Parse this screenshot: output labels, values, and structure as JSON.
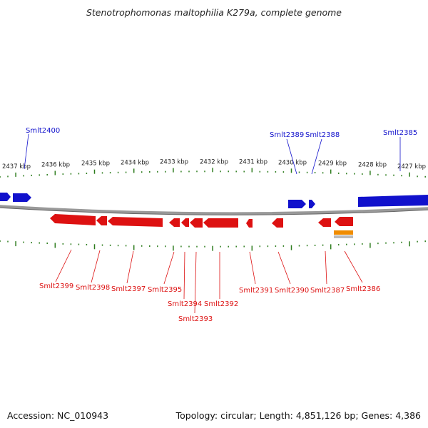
{
  "title": "Stenotrophomonas maltophilia K279a, complete genome",
  "footer": {
    "accession": "Accession: NC_010943",
    "summary": "Topology: circular; Length: 4,851,126 bp; Genes: 4,386"
  },
  "colors": {
    "forward": "#1111cc",
    "reverse": "#dd1111",
    "ticks": "#2e7d1e",
    "backbone": "#888888",
    "other_feature": "#f08c00"
  },
  "axis_labels": [
    "2437 kbp",
    "2436 kbp",
    "2435 kbp",
    "2434 kbp",
    "2433 kbp",
    "2432 kbp",
    "2431 kbp",
    "2430 kbp",
    "2429 kbp",
    "2428 kbp",
    "2427 kbp"
  ],
  "forward_labels": [
    "Smlt2400",
    "Smlt2389",
    "Smlt2388",
    "Smlt2385"
  ],
  "reverse_labels": [
    "Smlt2399",
    "Smlt2398",
    "Smlt2397",
    "Smlt2395",
    "Smlt2394",
    "Smlt2393",
    "Smlt2392",
    "Smlt2391",
    "Smlt2390",
    "Smlt2387",
    "Smlt2386"
  ]
}
